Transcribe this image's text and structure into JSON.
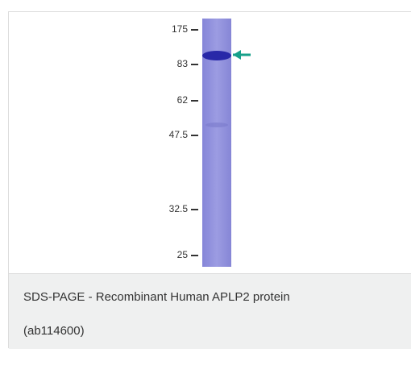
{
  "figure": {
    "markers": [
      "175",
      "83",
      "62",
      "47.5",
      "32.5",
      "25"
    ]
  },
  "caption": {
    "line1": "SDS-PAGE - Recombinant Human APLP2 protein",
    "line2": "(ab114600)"
  }
}
